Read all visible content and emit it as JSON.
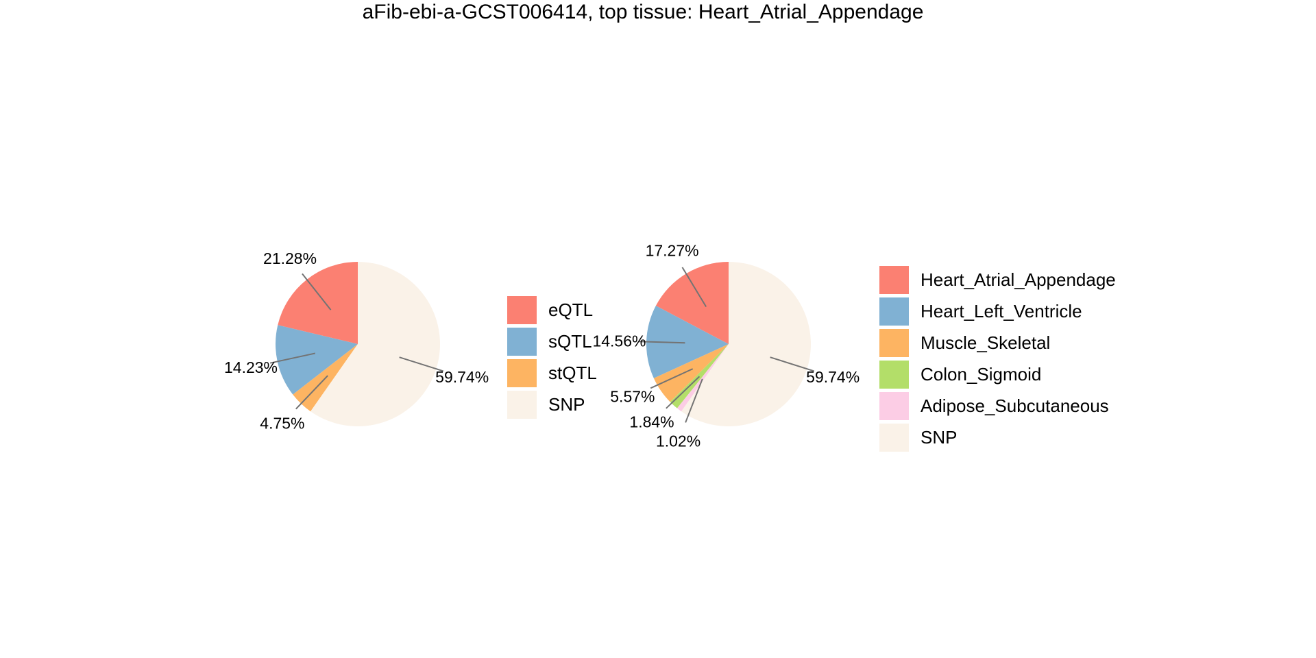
{
  "title": "aFib-ebi-a-GCST006414, top tissue: Heart_Atrial_Appendage",
  "text_color": "#000000",
  "background_color": "#ffffff",
  "leader_line_color": "#737373",
  "chart_data": [
    {
      "type": "pie",
      "name": "qtl-type-proportions",
      "start_angle": 90,
      "direction": "counterclockwise",
      "legend_position": "right-of-pie",
      "slices": [
        {
          "label": "eQTL",
          "value": 21.28,
          "display": "21.28%",
          "color": "#FB8072"
        },
        {
          "label": "sQTL",
          "value": 14.23,
          "display": "14.23%",
          "color": "#80B1D3"
        },
        {
          "label": "stQTL",
          "value": 4.75,
          "display": "4.75%",
          "color": "#FDB462"
        },
        {
          "label": "SNP",
          "value": 59.74,
          "display": "59.74%",
          "color": "#FAF2E8"
        }
      ]
    },
    {
      "type": "pie",
      "name": "top-tissue-proportions",
      "start_angle": 90,
      "direction": "counterclockwise",
      "legend_position": "right-of-pie",
      "slices": [
        {
          "label": "Heart_Atrial_Appendage",
          "value": 17.27,
          "display": "17.27%",
          "color": "#FB8072"
        },
        {
          "label": "Heart_Left_Ventricle",
          "value": 14.56,
          "display": "14.56%",
          "color": "#80B1D3"
        },
        {
          "label": "Muscle_Skeletal",
          "value": 5.57,
          "display": "5.57%",
          "color": "#FDB462"
        },
        {
          "label": "Colon_Sigmoid",
          "value": 1.84,
          "display": "1.84%",
          "color": "#B3DE69"
        },
        {
          "label": "Adipose_Subcutaneous",
          "value": 1.02,
          "display": "1.02%",
          "color": "#FCCDE5"
        },
        {
          "label": "SNP",
          "value": 59.74,
          "display": "59.74%",
          "color": "#FAF2E8"
        }
      ]
    }
  ]
}
